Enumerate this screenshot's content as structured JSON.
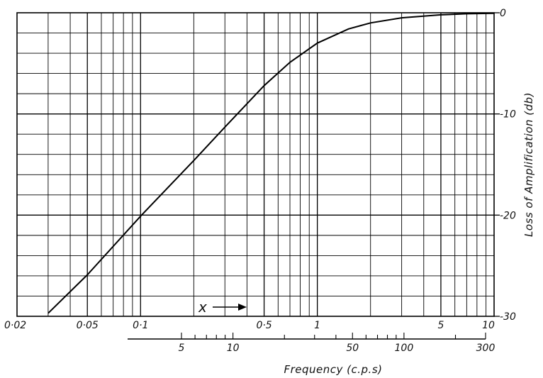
{
  "chart_data": {
    "type": "line",
    "title": "",
    "ylabel": "Loss of Amplification (db)",
    "xlabel": "Frequency (c.p.s)",
    "inner_axis_label": "x",
    "grid": true,
    "x_scale": "log",
    "xlim": [
      0.02,
      10
    ],
    "ylim": [
      -30,
      0
    ],
    "x_tick_labels": [
      "0·02",
      "0·05",
      "0·1",
      "0·5",
      "1",
      "5",
      "10"
    ],
    "x_tick_values": [
      0.02,
      0.05,
      0.1,
      0.5,
      1,
      5,
      10
    ],
    "y_tick_labels": [
      "0",
      "-10",
      "-20",
      "-30"
    ],
    "y_tick_values": [
      0,
      -10,
      -20,
      -30
    ],
    "frequency_axis": {
      "scale": "log",
      "tick_labels": [
        "5",
        "10",
        "50",
        "100",
        "300"
      ],
      "tick_values": [
        5,
        10,
        50,
        100,
        300
      ]
    },
    "series": [
      {
        "x": [
          0.03,
          0.05,
          0.1,
          0.2,
          0.3,
          0.5,
          0.7,
          1,
          1.5,
          2,
          3,
          5,
          7,
          10
        ],
        "y": [
          -29.7,
          -25.9,
          -20.1,
          -14.6,
          -11.3,
          -7.2,
          -4.9,
          -3.0,
          -1.6,
          -1.0,
          -0.5,
          -0.2,
          -0.1,
          -0.05
        ]
      }
    ]
  }
}
